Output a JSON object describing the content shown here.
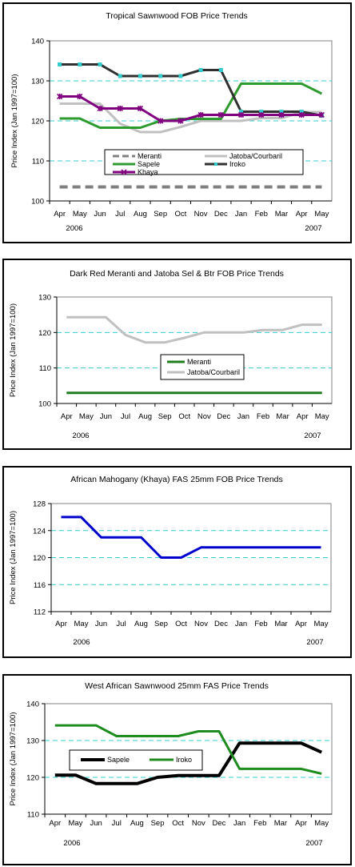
{
  "chart_data": [
    {
      "type": "line",
      "title": "Tropical Sawnwood FOB Price Trends",
      "ylabel": "Price Index (Jan 1997=100)",
      "categories": [
        "Apr",
        "May",
        "Jun",
        "Jul",
        "Aug",
        "Sep",
        "Oct",
        "Nov",
        "Dec",
        "Jan",
        "Feb",
        "Mar",
        "Apr",
        "May"
      ],
      "year_labels": [
        "2006",
        "2007"
      ],
      "ylim": [
        100,
        140
      ],
      "yticks": [
        100,
        110,
        120,
        130,
        140
      ],
      "grid": "dashed horizontal",
      "legend": "bottom-center",
      "series": [
        {
          "name": "Meranti",
          "color": "#808080",
          "style": "dashed",
          "values": [
            103.5,
            103.5,
            103.5,
            103.5,
            103.5,
            103.5,
            103.5,
            103.5,
            103.5,
            103.5,
            103.5,
            103.5,
            103.5,
            103.5
          ]
        },
        {
          "name": "Jatoba/Courbaril",
          "color": "#c0c0c0",
          "style": "solid",
          "values": [
            124.3,
            124.3,
            124.3,
            119.3,
            117.2,
            117.2,
            118.5,
            120,
            120,
            120,
            120.7,
            120.7,
            122.2,
            122.2
          ]
        },
        {
          "name": "Sapele",
          "color": "#2e9b2e",
          "style": "solid",
          "values": [
            120.6,
            120.6,
            118.3,
            118.3,
            118.3,
            120,
            120.5,
            120.5,
            120.5,
            129.3,
            129.3,
            129.3,
            129.3,
            126.8
          ]
        },
        {
          "name": "Iroko",
          "color": "#303030",
          "style": "solid",
          "marker": "square",
          "values": [
            134.1,
            134.1,
            134.1,
            131.2,
            131.2,
            131.2,
            131.2,
            132.7,
            132.7,
            122.3,
            122.3,
            122.3,
            122.3,
            121.3
          ]
        },
        {
          "name": "Khaya",
          "color": "#800080",
          "style": "solid",
          "marker": "star",
          "values": [
            126.1,
            126.1,
            123.1,
            123.1,
            123.1,
            120,
            120,
            121.5,
            121.5,
            121.5,
            121.5,
            121.5,
            121.5,
            121.5
          ]
        }
      ]
    },
    {
      "type": "line",
      "title": "Dark Red Meranti and Jatoba Sel & Btr FOB Price Trends",
      "ylabel": "Price Index (Jan 1997=100)",
      "categories": [
        "Apr",
        "May",
        "Jun",
        "Jul",
        "Aug",
        "Sep",
        "Oct",
        "Nov",
        "Dec",
        "Jan",
        "Feb",
        "Mar",
        "Apr",
        "May"
      ],
      "year_labels": [
        "2006",
        "2007"
      ],
      "ylim": [
        100,
        130
      ],
      "yticks": [
        100,
        110,
        120,
        130
      ],
      "grid": "dashed horizontal",
      "legend": "center",
      "series": [
        {
          "name": "Meranti",
          "color": "#1e7d1e",
          "style": "solid",
          "values": [
            103,
            103,
            103,
            103,
            103,
            103,
            103,
            103,
            103,
            103,
            103,
            103,
            103,
            103
          ]
        },
        {
          "name": "Jatoba/Courbaril",
          "color": "#c0c0c0",
          "style": "solid",
          "values": [
            124.3,
            124.3,
            124.3,
            119.3,
            117.2,
            117.2,
            118.5,
            120,
            120,
            120,
            120.7,
            120.7,
            122.2,
            122.2
          ]
        }
      ]
    },
    {
      "type": "line",
      "title": "African Mahogany (Khaya) FAS 25mm FOB Price Trends",
      "ylabel": "Price Index (Jan 1997=100)",
      "categories": [
        "Apr",
        "May",
        "Jun",
        "Jul",
        "Aug",
        "Sep",
        "Oct",
        "Nov",
        "Dec",
        "Jan",
        "Feb",
        "Mar",
        "Apr",
        "May"
      ],
      "year_labels": [
        "2006",
        "2007"
      ],
      "ylim": [
        112,
        128
      ],
      "yticks": [
        112,
        116,
        120,
        124,
        128
      ],
      "grid": "dashed horizontal",
      "legend": "none",
      "series": [
        {
          "name": "",
          "color": "#0000cc",
          "style": "solid",
          "values": [
            126,
            126,
            123,
            123,
            123,
            120,
            120,
            121.5,
            121.5,
            121.5,
            121.5,
            121.5,
            121.5,
            121.5
          ]
        }
      ]
    },
    {
      "type": "line",
      "title": "West African Sawnwood 25mm FAS Price Trends",
      "ylabel": "Price Index (Jan 1997=100)",
      "categories": [
        "Apr",
        "May",
        "Jun",
        "Jul",
        "Aug",
        "Sep",
        "Oct",
        "Nov",
        "Dec",
        "Jan",
        "Feb",
        "Mar",
        "Apr",
        "May"
      ],
      "year_labels": [
        "2006",
        "2007"
      ],
      "ylim": [
        110,
        140
      ],
      "yticks": [
        110,
        120,
        130,
        140
      ],
      "grid": "dashed horizontal",
      "legend": "center-left",
      "series": [
        {
          "name": "Sapele",
          "color": "#000000",
          "style": "bold",
          "values": [
            120.6,
            120.6,
            118.3,
            118.3,
            118.3,
            120,
            120.5,
            120.5,
            120.5,
            129.3,
            129.3,
            129.3,
            129.3,
            126.8
          ]
        },
        {
          "name": "Iroko",
          "color": "#1e8c1e",
          "style": "solid",
          "values": [
            134.1,
            134.1,
            134.1,
            131.2,
            131.2,
            131.2,
            131.2,
            132.5,
            132.5,
            122.3,
            122.3,
            122.3,
            122.3,
            121
          ]
        }
      ]
    }
  ]
}
